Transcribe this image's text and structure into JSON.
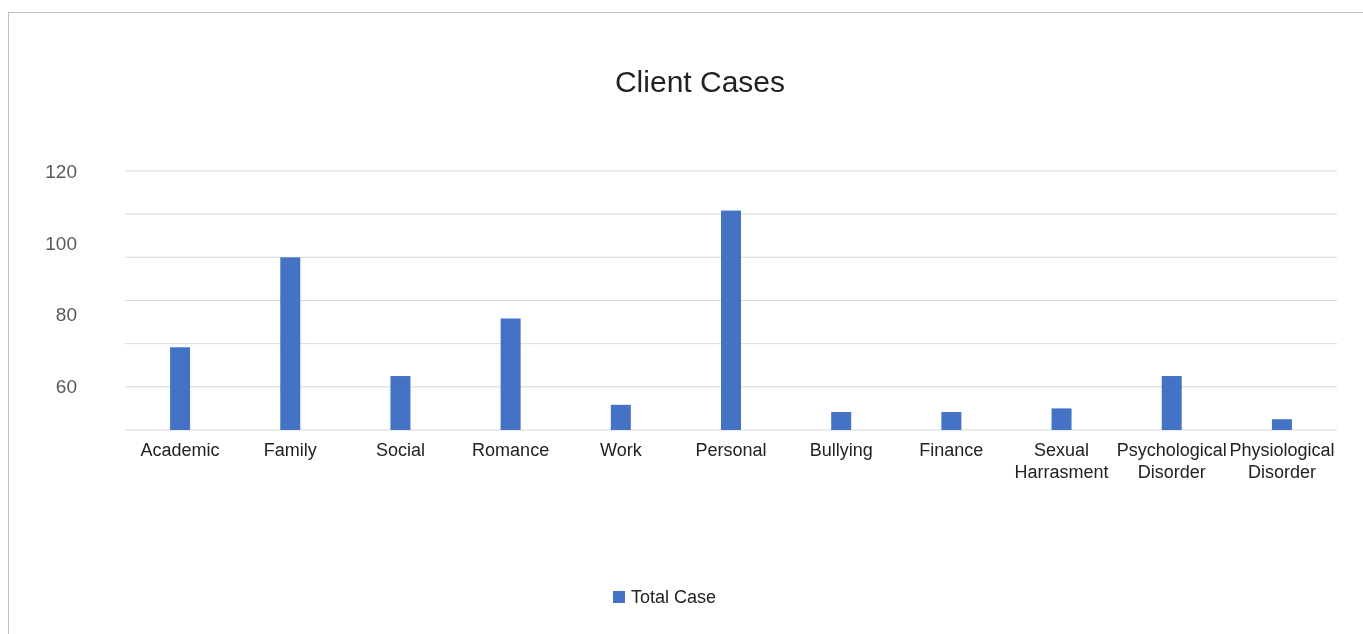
{
  "chart_data": {
    "type": "bar",
    "title": "Client Cases",
    "categories": [
      "Academic",
      "Family",
      "Social",
      "Romance",
      "Work",
      "Personal",
      "Bullying",
      "Finance",
      "Sexual Harrasment",
      "Psychological Disorder",
      "Physiological Disorder"
    ],
    "series": [
      {
        "name": "Total Case",
        "color": "#4472c4",
        "values": [
          71,
          96,
          63,
          79,
          55,
          109,
          53,
          53,
          54,
          63,
          51
        ]
      }
    ],
    "ylim": [
      48,
      120
    ],
    "yticks": [
      60,
      {
        "value": 72,
        "label": null
      },
      {
        "value": 80,
        "label": "80"
      },
      {
        "value": 84,
        "label": null
      },
      {
        "value": 96,
        "label": null
      },
      {
        "value": 100,
        "label": "100"
      },
      {
        "value": 108,
        "label": null
      },
      120
    ],
    "grid": "y",
    "legend": "bottom"
  }
}
